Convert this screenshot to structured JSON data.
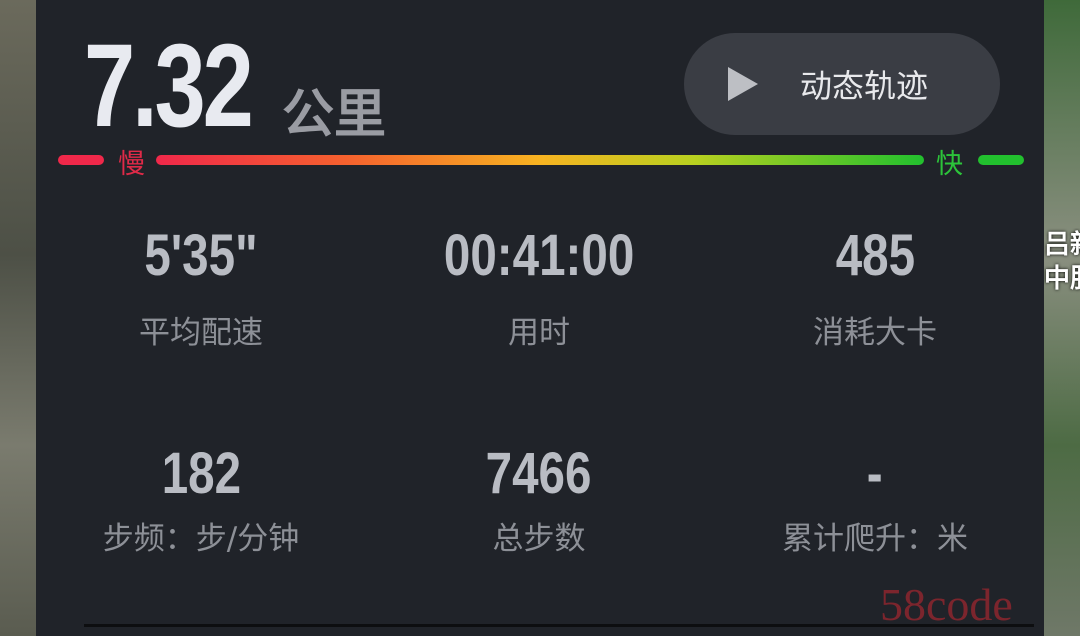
{
  "distance": {
    "value": "7.32",
    "unit": "公里"
  },
  "track_button": {
    "label": "动态轨迹",
    "icon": "play-icon"
  },
  "pace_legend": {
    "slow": "慢",
    "fast": "快",
    "slow_color": "#f0284a",
    "fast_color": "#22c02e"
  },
  "stats": [
    {
      "value": "5'35\"",
      "label": "平均配速"
    },
    {
      "value": "00:41:00",
      "label": "用时"
    },
    {
      "value": "485",
      "label": "消耗大卡"
    },
    {
      "value": "182",
      "label": "步频：步/分钟"
    },
    {
      "value": "7466",
      "label": "总步数"
    },
    {
      "value": "-",
      "label": "累计爬升：米"
    }
  ],
  "background_text": "吕新\n中服",
  "watermark": "58code"
}
